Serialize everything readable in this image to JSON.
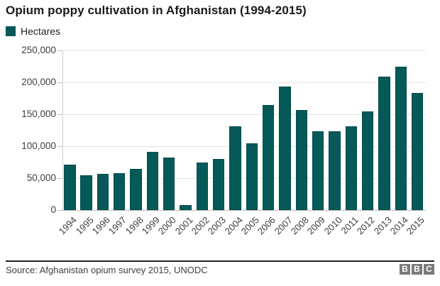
{
  "title": "Opium poppy cultivation in Afghanistan (1994-2015)",
  "legend": {
    "label": "Hectares",
    "color": "#055a58"
  },
  "chart_data": {
    "type": "bar",
    "title": "Opium poppy cultivation in Afghanistan (1994-2015)",
    "series_name": "Hectares",
    "categories": [
      "1994",
      "1995",
      "1996",
      "1997",
      "1998",
      "1999",
      "2000",
      "2001",
      "2002",
      "2003",
      "2004",
      "2005",
      "2006",
      "2007",
      "2008",
      "2009",
      "2010",
      "2011",
      "2012",
      "2013",
      "2014",
      "2015"
    ],
    "values": [
      71000,
      54000,
      57000,
      58000,
      64000,
      91000,
      82000,
      8000,
      74000,
      80000,
      131000,
      104000,
      165000,
      193000,
      157000,
      123000,
      123000,
      131000,
      154000,
      209000,
      224000,
      183000
    ],
    "xlabel": "",
    "ylabel": "",
    "ylim": [
      0,
      250000
    ],
    "ytick_step": 50000,
    "ytick_labels": [
      "0",
      "50,000",
      "100,000",
      "150,000",
      "200,000",
      "250,000"
    ],
    "grid": true,
    "legend_position": "top-left",
    "bar_color": "#055a58",
    "bar_border_color": "#02494c"
  },
  "footer": {
    "source": "Source: Afghanistan opium survey 2015, UNODC",
    "logo_letters": [
      "B",
      "B",
      "C"
    ]
  }
}
